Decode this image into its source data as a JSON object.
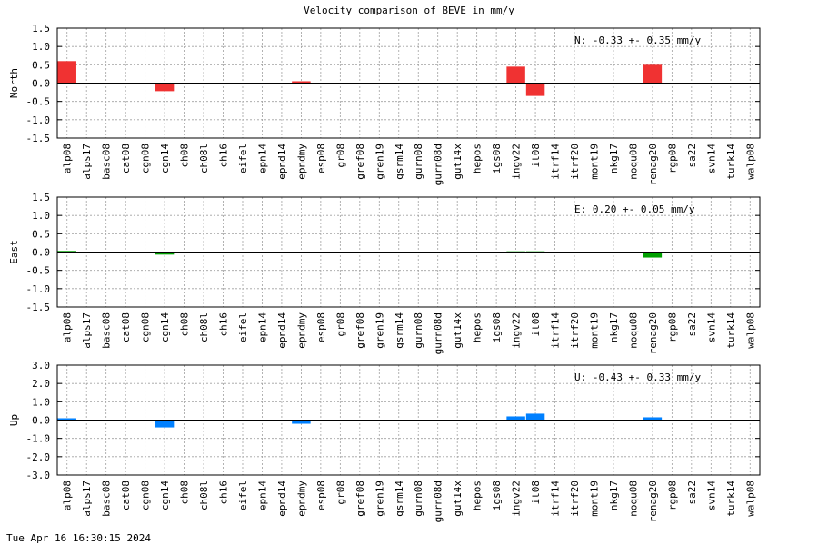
{
  "title": "Velocity comparison of BEVE in mm/y",
  "footer": {
    "timestamp": "Tue Apr 16 16:30:15 2024"
  },
  "colors": {
    "north": "#f03232",
    "east": "#00a000",
    "up": "#0080ff",
    "grid": "#a0a0a0"
  },
  "chart_data": [
    {
      "type": "bar",
      "ylabel": "North",
      "ylim": [
        -1.5,
        1.5
      ],
      "yticks": [
        "1.5",
        "1.0",
        "0.5",
        "0.0",
        "-0.5",
        "-1.0",
        "-1.5"
      ],
      "grid": true,
      "annotation": "N:  -0.33 +-  0.35 mm/y",
      "categories": [
        "alp08",
        "alps17",
        "basc08",
        "cat08",
        "cgn08",
        "cgn14",
        "ch08",
        "ch08l",
        "ch16",
        "eifel",
        "epn14",
        "epnd14",
        "epndmy",
        "esp08",
        "gr08",
        "gref08",
        "gren19",
        "gsrm14",
        "gurn08",
        "gurn08d",
        "gut14x",
        "hepos",
        "igs08",
        "ingv22",
        "it08",
        "itrf14",
        "itrf20",
        "mont19",
        "nkg17",
        "noqu08",
        "renag20",
        "rgp08",
        "sa22",
        "svn14",
        "turk14",
        "walp08"
      ],
      "values": [
        0.6,
        0,
        0,
        0,
        0,
        -0.22,
        0,
        0,
        0,
        0,
        0,
        0,
        0.05,
        0,
        0,
        0,
        0,
        0,
        0,
        0,
        0,
        0,
        0,
        0.45,
        -0.35,
        0,
        0,
        0,
        0,
        0,
        0.5,
        0,
        0,
        0,
        0,
        0
      ]
    },
    {
      "type": "bar",
      "ylabel": "East",
      "ylim": [
        -1.5,
        1.5
      ],
      "yticks": [
        "1.5",
        "1.0",
        "0.5",
        "0.0",
        "-0.5",
        "-1.0",
        "-1.5"
      ],
      "grid": true,
      "annotation": "E:   0.20 +-  0.05 mm/y",
      "categories": [
        "alp08",
        "alps17",
        "basc08",
        "cat08",
        "cgn08",
        "cgn14",
        "ch08",
        "ch08l",
        "ch16",
        "eifel",
        "epn14",
        "epnd14",
        "epndmy",
        "esp08",
        "gr08",
        "gref08",
        "gren19",
        "gsrm14",
        "gurn08",
        "gurn08d",
        "gut14x",
        "hepos",
        "igs08",
        "ingv22",
        "it08",
        "itrf14",
        "itrf20",
        "mont19",
        "nkg17",
        "noqu08",
        "renag20",
        "rgp08",
        "sa22",
        "svn14",
        "turk14",
        "walp08"
      ],
      "values": [
        0.03,
        0,
        0,
        0,
        0,
        -0.07,
        0,
        0,
        0,
        0,
        0,
        0,
        -0.02,
        0,
        0,
        0,
        0,
        0,
        0,
        0,
        0,
        0,
        0,
        0.02,
        0.02,
        0,
        0,
        0,
        0,
        0,
        -0.15,
        0,
        0,
        0,
        0,
        0
      ]
    },
    {
      "type": "bar",
      "ylabel": "Up",
      "ylim": [
        -3.0,
        3.0
      ],
      "yticks": [
        "3.0",
        "2.0",
        "1.0",
        "0.0",
        "-1.0",
        "-2.0",
        "-3.0"
      ],
      "grid": true,
      "annotation": "U:  -0.43 +-  0.33 mm/y",
      "categories": [
        "alp08",
        "alps17",
        "basc08",
        "cat08",
        "cgn08",
        "cgn14",
        "ch08",
        "ch08l",
        "ch16",
        "eifel",
        "epn14",
        "epnd14",
        "epndmy",
        "esp08",
        "gr08",
        "gref08",
        "gren19",
        "gsrm14",
        "gurn08",
        "gurn08d",
        "gut14x",
        "hepos",
        "igs08",
        "ingv22",
        "it08",
        "itrf14",
        "itrf20",
        "mont19",
        "nkg17",
        "noqu08",
        "renag20",
        "rgp08",
        "sa22",
        "svn14",
        "turk14",
        "walp08"
      ],
      "values": [
        0.1,
        0,
        0,
        0,
        0,
        -0.4,
        0,
        0,
        0,
        0,
        0,
        0,
        -0.2,
        0,
        0,
        0,
        0,
        0,
        0,
        0,
        0,
        0,
        0,
        0.2,
        0.35,
        0,
        0,
        0,
        0,
        0,
        0.15,
        0,
        0,
        0,
        0,
        0
      ]
    }
  ]
}
